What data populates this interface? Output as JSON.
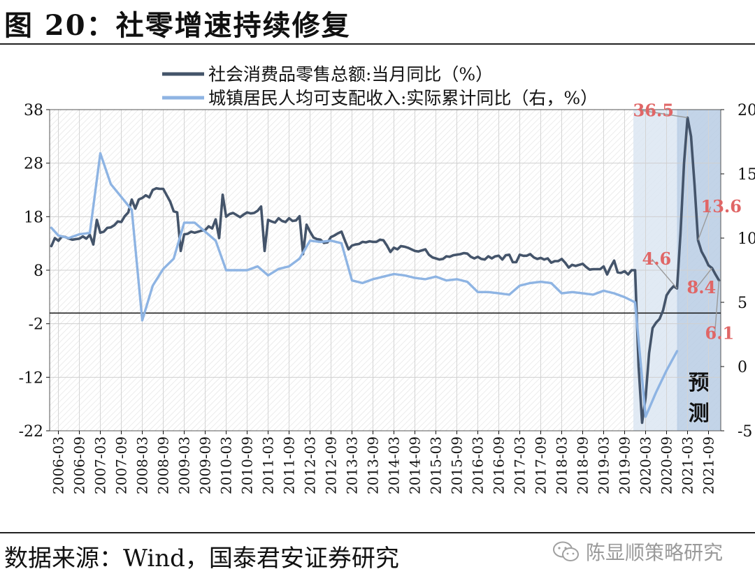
{
  "title": "图 20：社零增速持续修复",
  "source": "数据来源：Wind，国泰君安证券研究",
  "watermark": "陈显顺策略研究",
  "chart_data": {
    "type": "line",
    "series": [
      {
        "name": "社会消费品零售总额:当月同比（%）",
        "axis": "left",
        "color": "#44546a",
        "points": [
          [
            "2006-01",
            12.5
          ],
          [
            "2006-02",
            14.0
          ],
          [
            "2006-03",
            13.5
          ],
          [
            "2006-04",
            14.3
          ],
          [
            "2006-05",
            14.2
          ],
          [
            "2006-06",
            13.9
          ],
          [
            "2006-07",
            13.7
          ],
          [
            "2006-08",
            13.8
          ],
          [
            "2006-09",
            13.9
          ],
          [
            "2006-10",
            14.3
          ],
          [
            "2006-11",
            13.9
          ],
          [
            "2006-12",
            14.6
          ],
          [
            "2007-01",
            12.8
          ],
          [
            "2007-02",
            17.4
          ],
          [
            "2007-03",
            15.0
          ],
          [
            "2007-04",
            15.2
          ],
          [
            "2007-05",
            15.9
          ],
          [
            "2007-06",
            16.0
          ],
          [
            "2007-07",
            16.4
          ],
          [
            "2007-08",
            17.1
          ],
          [
            "2007-09",
            17.0
          ],
          [
            "2007-10",
            18.1
          ],
          [
            "2007-11",
            18.8
          ],
          [
            "2007-12",
            21.2
          ],
          [
            "2008-01",
            19.5
          ],
          [
            "2008-02",
            21.2
          ],
          [
            "2008-03",
            21.5
          ],
          [
            "2008-04",
            22.0
          ],
          [
            "2008-05",
            21.6
          ],
          [
            "2008-06",
            23.0
          ],
          [
            "2008-07",
            23.3
          ],
          [
            "2008-08",
            23.2
          ],
          [
            "2008-09",
            23.2
          ],
          [
            "2008-10",
            22.0
          ],
          [
            "2008-11",
            20.8
          ],
          [
            "2008-12",
            19.0
          ],
          [
            "2009-01",
            18.8
          ],
          [
            "2009-02",
            11.6
          ],
          [
            "2009-03",
            14.7
          ],
          [
            "2009-04",
            14.8
          ],
          [
            "2009-05",
            15.2
          ],
          [
            "2009-06",
            15.0
          ],
          [
            "2009-07",
            15.2
          ],
          [
            "2009-08",
            15.4
          ],
          [
            "2009-09",
            15.5
          ],
          [
            "2009-10",
            16.2
          ],
          [
            "2009-11",
            15.8
          ],
          [
            "2009-12",
            17.5
          ],
          [
            "2010-01",
            14.0
          ],
          [
            "2010-02",
            22.1
          ],
          [
            "2010-03",
            18.0
          ],
          [
            "2010-04",
            18.5
          ],
          [
            "2010-05",
            18.7
          ],
          [
            "2010-06",
            18.3
          ],
          [
            "2010-07",
            17.9
          ],
          [
            "2010-08",
            18.4
          ],
          [
            "2010-09",
            18.8
          ],
          [
            "2010-10",
            18.6
          ],
          [
            "2010-11",
            18.7
          ],
          [
            "2010-12",
            19.1
          ],
          [
            "2011-01",
            19.9
          ],
          [
            "2011-02",
            11.6
          ],
          [
            "2011-03",
            17.4
          ],
          [
            "2011-04",
            17.1
          ],
          [
            "2011-05",
            16.9
          ],
          [
            "2011-06",
            17.7
          ],
          [
            "2011-07",
            17.2
          ],
          [
            "2011-08",
            17.0
          ],
          [
            "2011-09",
            17.7
          ],
          [
            "2011-10",
            17.2
          ],
          [
            "2011-11",
            17.3
          ],
          [
            "2011-12",
            18.1
          ],
          [
            "2012-01",
            11.0
          ],
          [
            "2012-02",
            16.5
          ],
          [
            "2012-03",
            15.2
          ],
          [
            "2012-04",
            14.1
          ],
          [
            "2012-05",
            13.8
          ],
          [
            "2012-06",
            13.7
          ],
          [
            "2012-07",
            13.1
          ],
          [
            "2012-08",
            13.2
          ],
          [
            "2012-09",
            14.2
          ],
          [
            "2012-10",
            14.5
          ],
          [
            "2012-11",
            14.9
          ],
          [
            "2012-12",
            15.2
          ],
          [
            "2013-01",
            13.5
          ],
          [
            "2013-02",
            11.9
          ],
          [
            "2013-03",
            12.6
          ],
          [
            "2013-04",
            12.8
          ],
          [
            "2013-05",
            12.9
          ],
          [
            "2013-06",
            13.3
          ],
          [
            "2013-07",
            13.2
          ],
          [
            "2013-08",
            13.4
          ],
          [
            "2013-09",
            13.3
          ],
          [
            "2013-10",
            13.3
          ],
          [
            "2013-11",
            13.7
          ],
          [
            "2013-12",
            13.6
          ],
          [
            "2014-01",
            12.6
          ],
          [
            "2014-02",
            11.4
          ],
          [
            "2014-03",
            12.2
          ],
          [
            "2014-04",
            11.9
          ],
          [
            "2014-05",
            12.5
          ],
          [
            "2014-06",
            12.4
          ],
          [
            "2014-07",
            12.2
          ],
          [
            "2014-08",
            11.9
          ],
          [
            "2014-09",
            11.6
          ],
          [
            "2014-10",
            11.5
          ],
          [
            "2014-11",
            11.7
          ],
          [
            "2014-12",
            11.9
          ],
          [
            "2015-01",
            10.9
          ],
          [
            "2015-02",
            10.4
          ],
          [
            "2015-03",
            10.2
          ],
          [
            "2015-04",
            10.0
          ],
          [
            "2015-05",
            10.1
          ],
          [
            "2015-06",
            10.6
          ],
          [
            "2015-07",
            10.5
          ],
          [
            "2015-08",
            10.8
          ],
          [
            "2015-09",
            10.9
          ],
          [
            "2015-10",
            11.0
          ],
          [
            "2015-11",
            11.2
          ],
          [
            "2015-12",
            11.1
          ],
          [
            "2016-01",
            10.5
          ],
          [
            "2016-02",
            10.2
          ],
          [
            "2016-03",
            10.5
          ],
          [
            "2016-04",
            10.1
          ],
          [
            "2016-05",
            10.0
          ],
          [
            "2016-06",
            10.6
          ],
          [
            "2016-07",
            10.2
          ],
          [
            "2016-08",
            10.6
          ],
          [
            "2016-09",
            10.7
          ],
          [
            "2016-10",
            10.0
          ],
          [
            "2016-11",
            10.8
          ],
          [
            "2016-12",
            10.9
          ],
          [
            "2017-01",
            9.5
          ],
          [
            "2017-02",
            9.5
          ],
          [
            "2017-03",
            10.9
          ],
          [
            "2017-04",
            10.7
          ],
          [
            "2017-05",
            10.7
          ],
          [
            "2017-06",
            11.0
          ],
          [
            "2017-07",
            10.4
          ],
          [
            "2017-08",
            10.1
          ],
          [
            "2017-09",
            10.3
          ],
          [
            "2017-10",
            10.0
          ],
          [
            "2017-11",
            10.2
          ],
          [
            "2017-12",
            9.4
          ],
          [
            "2018-01",
            9.7
          ],
          [
            "2018-02",
            9.7
          ],
          [
            "2018-03",
            10.1
          ],
          [
            "2018-04",
            9.4
          ],
          [
            "2018-05",
            8.5
          ],
          [
            "2018-06",
            9.0
          ],
          [
            "2018-07",
            8.8
          ],
          [
            "2018-08",
            9.0
          ],
          [
            "2018-09",
            9.2
          ],
          [
            "2018-10",
            8.6
          ],
          [
            "2018-11",
            8.1
          ],
          [
            "2018-12",
            8.2
          ],
          [
            "2019-01",
            8.2
          ],
          [
            "2019-02",
            8.2
          ],
          [
            "2019-03",
            8.7
          ],
          [
            "2019-04",
            7.2
          ],
          [
            "2019-05",
            8.6
          ],
          [
            "2019-06",
            9.8
          ],
          [
            "2019-07",
            7.6
          ],
          [
            "2019-08",
            7.5
          ],
          [
            "2019-09",
            7.8
          ],
          [
            "2019-10",
            7.2
          ],
          [
            "2019-11",
            8.0
          ],
          [
            "2019-12",
            8.0
          ],
          [
            "2020-01",
            -10.0
          ],
          [
            "2020-02",
            -20.5
          ],
          [
            "2020-03",
            -15.8
          ],
          [
            "2020-04",
            -7.5
          ],
          [
            "2020-05",
            -2.8
          ],
          [
            "2020-06",
            -1.8
          ],
          [
            "2020-07",
            -1.1
          ],
          [
            "2020-08",
            0.5
          ],
          [
            "2020-09",
            3.3
          ],
          [
            "2020-10",
            4.3
          ],
          [
            "2020-11",
            5.0
          ],
          [
            "2020-12",
            4.6
          ],
          [
            "2021-01",
            15.0
          ],
          [
            "2021-02",
            28.0
          ],
          [
            "2021-03",
            36.5
          ],
          [
            "2021-04",
            33.0
          ],
          [
            "2021-05",
            24.0
          ],
          [
            "2021-06",
            13.6
          ],
          [
            "2021-07",
            11.5
          ],
          [
            "2021-08",
            10.3
          ],
          [
            "2021-09",
            8.9
          ],
          [
            "2021-10",
            8.4
          ],
          [
            "2021-11",
            7.2
          ],
          [
            "2021-12",
            6.1
          ]
        ]
      },
      {
        "name": "城镇居民人均可支配收入:实际累计同比（右，%）",
        "axis": "right",
        "color": "#8eb4e3",
        "points": [
          [
            "2006-01",
            10.8
          ],
          [
            "2006-03",
            10.2
          ],
          [
            "2006-06",
            10.0
          ],
          [
            "2006-09",
            10.3
          ],
          [
            "2006-12",
            10.4
          ],
          [
            "2007-03",
            16.6
          ],
          [
            "2007-06",
            14.2
          ],
          [
            "2007-09",
            13.2
          ],
          [
            "2007-12",
            12.2
          ],
          [
            "2008-03",
            3.6
          ],
          [
            "2008-06",
            6.3
          ],
          [
            "2008-09",
            7.6
          ],
          [
            "2008-12",
            8.4
          ],
          [
            "2009-03",
            11.2
          ],
          [
            "2009-06",
            11.2
          ],
          [
            "2009-09",
            10.5
          ],
          [
            "2009-12",
            9.8
          ],
          [
            "2010-03",
            7.5
          ],
          [
            "2010-06",
            7.5
          ],
          [
            "2010-09",
            7.5
          ],
          [
            "2010-12",
            7.8
          ],
          [
            "2011-03",
            7.1
          ],
          [
            "2011-06",
            7.6
          ],
          [
            "2011-09",
            7.8
          ],
          [
            "2011-12",
            8.4
          ],
          [
            "2012-03",
            9.8
          ],
          [
            "2012-06",
            9.7
          ],
          [
            "2012-09",
            9.8
          ],
          [
            "2012-12",
            9.6
          ],
          [
            "2013-03",
            6.7
          ],
          [
            "2013-06",
            6.5
          ],
          [
            "2013-09",
            6.8
          ],
          [
            "2013-12",
            7.0
          ],
          [
            "2014-03",
            7.2
          ],
          [
            "2014-06",
            7.1
          ],
          [
            "2014-09",
            6.9
          ],
          [
            "2014-12",
            6.8
          ],
          [
            "2015-03",
            7.0
          ],
          [
            "2015-06",
            6.7
          ],
          [
            "2015-09",
            6.8
          ],
          [
            "2015-12",
            6.6
          ],
          [
            "2016-03",
            5.8
          ],
          [
            "2016-06",
            5.8
          ],
          [
            "2016-09",
            5.7
          ],
          [
            "2016-12",
            5.6
          ],
          [
            "2017-03",
            6.3
          ],
          [
            "2017-06",
            6.5
          ],
          [
            "2017-09",
            6.6
          ],
          [
            "2017-12",
            6.5
          ],
          [
            "2018-03",
            5.7
          ],
          [
            "2018-06",
            5.8
          ],
          [
            "2018-09",
            5.7
          ],
          [
            "2018-12",
            5.6
          ],
          [
            "2019-03",
            5.9
          ],
          [
            "2019-06",
            5.7
          ],
          [
            "2019-09",
            5.4
          ],
          [
            "2019-12",
            5.0
          ],
          [
            "2020-03",
            -3.9
          ],
          [
            "2020-06",
            -2.0
          ],
          [
            "2020-09",
            -0.3
          ],
          [
            "2020-12",
            1.2
          ]
        ]
      }
    ],
    "left_axis": {
      "min": -22,
      "max": 38,
      "ticks": [
        38,
        28,
        18,
        8,
        -2,
        -12,
        -22
      ]
    },
    "right_axis": {
      "min": -5,
      "max": 20,
      "ticks": [
        20,
        15,
        10,
        5,
        0,
        -5
      ]
    },
    "x_range": [
      "2006-01",
      "2021-12"
    ],
    "x_tick_labels": [
      "2006-03",
      "2006-09",
      "2007-03",
      "2007-09",
      "2008-03",
      "2008-09",
      "2009-03",
      "2009-09",
      "2010-03",
      "2010-09",
      "2011-03",
      "2011-09",
      "2012-03",
      "2012-09",
      "2013-03",
      "2013-09",
      "2014-03",
      "2014-09",
      "2015-03",
      "2015-09",
      "2016-03",
      "2016-09",
      "2017-03",
      "2017-09",
      "2018-03",
      "2018-09",
      "2019-03",
      "2019-09",
      "2020-03",
      "2020-09",
      "2021-03",
      "2021-09"
    ],
    "shaded_regions": [
      {
        "from": "2019-12",
        "to": "2020-12",
        "color": "#dce6f2",
        "label": ""
      },
      {
        "from": "2020-12",
        "to": "2021-12",
        "color": "#b8cce4",
        "label": "预测"
      }
    ],
    "annotations": [
      {
        "text": "36.5",
        "at": "2021-03",
        "value": 36.5,
        "color": "#e06666"
      },
      {
        "text": "13.6",
        "at": "2021-06",
        "value": 13.6,
        "color": "#e06666"
      },
      {
        "text": "4.6",
        "at": "2020-12",
        "value": 4.6,
        "color": "#e06666"
      },
      {
        "text": "8.4",
        "at": "2021-10",
        "value": 8.4,
        "color": "#e06666"
      },
      {
        "text": "6.1",
        "at": "2021-12",
        "value": 6.1,
        "color": "#e06666"
      }
    ],
    "legend_position": "top",
    "grid": true,
    "background_pattern": "diagonal-hatch"
  }
}
